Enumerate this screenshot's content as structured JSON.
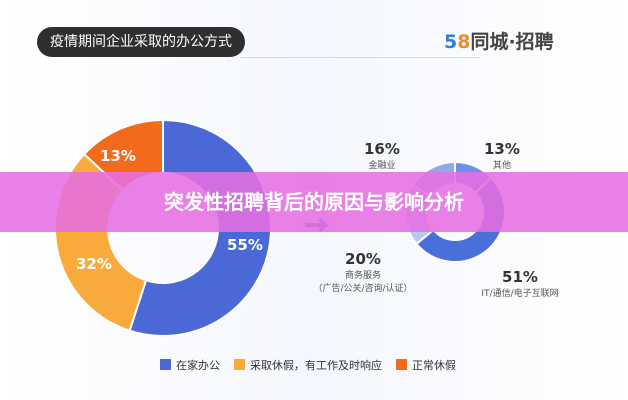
{
  "header": {
    "title": "疫情期间企业采取的办公方式",
    "logo_num": [
      "5",
      "8"
    ],
    "logo_text": "同城·招聘"
  },
  "banner": "突发性招聘背后的原因与影响分析",
  "chart_data": [
    {
      "type": "pie",
      "donut": true,
      "title": "疫情期间企业采取的办公方式",
      "slices": [
        {
          "label": "在家办公",
          "value": 55,
          "text": "55%",
          "color": "#4a69d6"
        },
        {
          "label": "采取休假，有工作及时响应",
          "value": 32,
          "text": "32%",
          "color": "#f8aa3a"
        },
        {
          "label": "正常休假",
          "value": 13,
          "text": "13%",
          "color": "#f26a1c"
        }
      ],
      "legend": "bottom"
    },
    {
      "type": "pie",
      "donut": true,
      "slices": [
        {
          "label": "其他",
          "value": 13,
          "text": "13%",
          "color": "#6f8fe6"
        },
        {
          "label": "IT/通信/电子互联网",
          "value": 51,
          "text": "51%",
          "color": "#4a6fd8"
        },
        {
          "label": "商务服务",
          "label2": "（广告/公关/咨询/认证）",
          "value": 20,
          "text": "20%",
          "color": "#b8c9f3"
        },
        {
          "label": "金融业",
          "value": 16,
          "text": "16%",
          "color": "#8eaaec"
        }
      ]
    }
  ]
}
